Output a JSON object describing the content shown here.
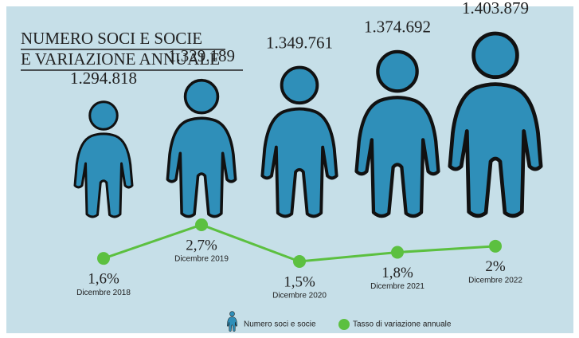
{
  "chart_data": {
    "type": "pictogram",
    "title": [
      "NUMERO SOCI E SOCIE",
      "E VARIAZIONE ANNUALE"
    ],
    "categories": [
      "Dicembre 2018",
      "Dicembre 2019",
      "Dicembre 2020",
      "Dicembre 2021",
      "Dicembre 2022"
    ],
    "series": [
      {
        "name": "Numero soci e socie",
        "color": "#2f8fb9",
        "values": [
          1294818,
          1329189,
          1349761,
          1374692,
          1403879
        ],
        "value_labels": [
          "1.294.818",
          "1.329.189",
          "1.349.761",
          "1.374.692",
          "1.403.879"
        ]
      },
      {
        "name": "Tasso di variazione annuale",
        "color": "#5cc040",
        "values": [
          1.6,
          2.7,
          1.5,
          1.8,
          2
        ],
        "value_labels": [
          "1,6%",
          "2,7%",
          "1,5%",
          "1,8%",
          "2%"
        ]
      }
    ]
  }
}
